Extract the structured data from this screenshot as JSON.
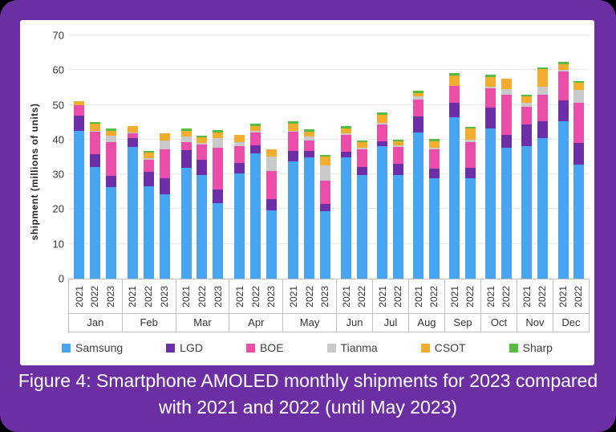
{
  "caption": {
    "line1": "Figure 4: Smartphone AMOLED monthly shipments for 2023 compared",
    "line2": "with 2021 and 2022 (until May 2023)"
  },
  "colors": {
    "frame": "#6b2fa3",
    "panel": "#ffffff",
    "gridline": "#e8e8e8",
    "axis_border": "#bfbfbf",
    "caption_text": "#ffffff"
  },
  "chart_data": {
    "type": "bar",
    "stacked": true,
    "ylabel": "shipment (millions of units)",
    "ylim": [
      0,
      70
    ],
    "yticks": [
      0,
      10,
      20,
      30,
      40,
      50,
      60,
      70
    ],
    "grid": true,
    "legend_position": "bottom",
    "series_names": [
      "Samsung",
      "LGD",
      "BOE",
      "Tianma",
      "CSOT",
      "Sharp"
    ],
    "series_colors": [
      "#47a5f1",
      "#6d2fa7",
      "#ea4ea8",
      "#c9c9c9",
      "#f2ac2e",
      "#53be3f"
    ],
    "note": "values are millions of units, stacked in series order",
    "groups": [
      {
        "month": "Jan",
        "bars": [
          {
            "year": "2021",
            "values": [
              42.4,
              4.6,
              3.0,
              0,
              1.0,
              0
            ]
          },
          {
            "year": "2022",
            "values": [
              32.2,
              3.5,
              6.6,
              0.3,
              2.0,
              0.5
            ]
          },
          {
            "year": "2023",
            "values": [
              26.4,
              3.1,
              9.7,
              2.0,
              1.4,
              0.5
            ]
          }
        ]
      },
      {
        "month": "Feb",
        "bars": [
          {
            "year": "2021",
            "values": [
              38.0,
              2.5,
              1.4,
              0.2,
              1.7,
              0
            ]
          },
          {
            "year": "2022",
            "values": [
              26.6,
              4.1,
              3.6,
              0.3,
              1.6,
              0.5
            ]
          },
          {
            "year": "2023",
            "values": [
              24.3,
              4.6,
              8.2,
              2.7,
              2.1,
              0
            ]
          }
        ]
      },
      {
        "month": "Mar",
        "bars": [
          {
            "year": "2021",
            "values": [
              31.9,
              5.0,
              2.3,
              1.8,
              1.5,
              0.6
            ]
          },
          {
            "year": "2022",
            "values": [
              29.9,
              4.4,
              4.4,
              0.3,
              1.6,
              0.6
            ]
          },
          {
            "year": "2023",
            "values": [
              21.8,
              3.9,
              12.0,
              2.7,
              1.7,
              0.6
            ]
          }
        ]
      },
      {
        "month": "Apr",
        "bars": [
          {
            "year": "2021",
            "values": [
              30.2,
              3.1,
              4.9,
              1.0,
              2.1,
              0
            ]
          },
          {
            "year": "2022",
            "values": [
              36.1,
              2.3,
              3.7,
              0.3,
              1.6,
              0.5
            ]
          },
          {
            "year": "2023",
            "values": [
              19.6,
              3.3,
              8.0,
              4.2,
              2.0,
              0
            ]
          }
        ]
      },
      {
        "month": "May",
        "bars": [
          {
            "year": "2021",
            "values": [
              33.8,
              2.9,
              5.5,
              0.4,
              2.1,
              0.5
            ]
          },
          {
            "year": "2022",
            "values": [
              34.8,
              1.9,
              3.1,
              1.0,
              1.5,
              0.6
            ]
          },
          {
            "year": "2023",
            "values": [
              19.3,
              2.3,
              6.5,
              4.5,
              2.5,
              0.6
            ]
          }
        ]
      },
      {
        "month": "Jun",
        "bars": [
          {
            "year": "2021",
            "values": [
              34.8,
              1.7,
              4.8,
              0.5,
              1.5,
              0.6
            ]
          },
          {
            "year": "2022",
            "values": [
              29.7,
              2.5,
              4.9,
              0.6,
              1.5,
              0.6
            ]
          }
        ]
      },
      {
        "month": "Jul",
        "bars": [
          {
            "year": "2021",
            "values": [
              38.2,
              1.3,
              4.9,
              0.5,
              2.3,
              0.6
            ]
          },
          {
            "year": "2022",
            "values": [
              29.9,
              3.1,
              4.9,
              0.5,
              1.1,
              0.5
            ]
          }
        ]
      },
      {
        "month": "Aug",
        "bars": [
          {
            "year": "2021",
            "values": [
              42.1,
              4.5,
              5.0,
              0.8,
              1.0,
              0.6
            ]
          },
          {
            "year": "2022",
            "values": [
              28.9,
              2.8,
              5.4,
              0.6,
              1.9,
              0.6
            ]
          }
        ]
      },
      {
        "month": "Sep",
        "bars": [
          {
            "year": "2021",
            "values": [
              46.4,
              4.2,
              4.9,
              0,
              2.9,
              0.8
            ]
          },
          {
            "year": "2022",
            "values": [
              28.9,
              3.0,
              7.3,
              0.8,
              3.1,
              0.5
            ]
          }
        ]
      },
      {
        "month": "Oct",
        "bars": [
          {
            "year": "2021",
            "values": [
              43.1,
              6.0,
              5.7,
              0.5,
              2.8,
              0.5
            ]
          },
          {
            "year": "2022",
            "values": [
              37.7,
              3.6,
              11.6,
              1.6,
              3.1,
              0
            ]
          }
        ]
      },
      {
        "month": "Nov",
        "bars": [
          {
            "year": "2021",
            "values": [
              38.2,
              6.2,
              5.1,
              1.1,
              1.8,
              0.5
            ]
          },
          {
            "year": "2022",
            "values": [
              40.4,
              4.8,
              7.7,
              2.4,
              4.9,
              0.5
            ]
          }
        ]
      },
      {
        "month": "Dec",
        "bars": [
          {
            "year": "2021",
            "values": [
              45.2,
              6.0,
              8.3,
              0.5,
              1.8,
              0.7
            ]
          },
          {
            "year": "2022",
            "values": [
              32.8,
              6.2,
              11.6,
              3.7,
              2.0,
              0.5
            ]
          }
        ]
      }
    ]
  }
}
